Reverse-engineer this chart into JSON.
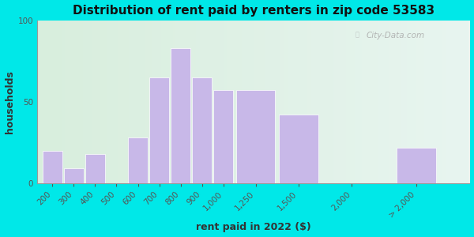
{
  "title": "Distribution of rent paid by renters in zip code 53583",
  "xlabel": "rent paid in 2022 ($)",
  "ylabel": "households",
  "categories": [
    "200",
    "300",
    "400",
    "500",
    "600",
    "700",
    "800",
    "900",
    "1,000",
    "1,250",
    "1,500",
    "2,000",
    "> 2,000"
  ],
  "values": [
    20,
    9,
    18,
    0,
    28,
    65,
    83,
    65,
    57,
    57,
    42,
    0,
    22
  ],
  "bar_widths": [
    1,
    1,
    1,
    1,
    1,
    1,
    1,
    1,
    1,
    2,
    2,
    2,
    2
  ],
  "bar_positions": [
    1,
    2,
    3,
    4,
    5,
    6,
    7,
    8,
    9,
    10.5,
    12.5,
    15,
    18
  ],
  "bar_color": "#c8b8e8",
  "bar_edge_color": "#ffffff",
  "ylim": [
    0,
    100
  ],
  "yticks": [
    0,
    50,
    100
  ],
  "bg_outer": "#00e8e8",
  "bg_inner_color1": "#d8eedd",
  "bg_inner_color2": "#e8f5f0",
  "watermark": "City-Data.com",
  "title_fontsize": 11,
  "label_fontsize": 9,
  "tick_fontsize": 7.5
}
